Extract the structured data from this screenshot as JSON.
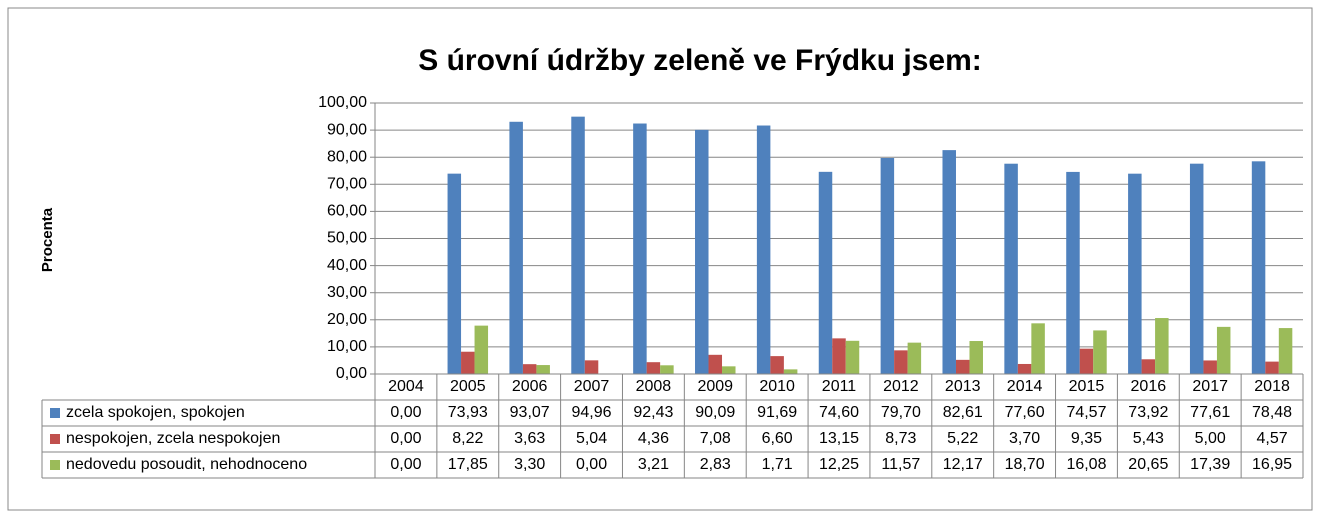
{
  "chart_data": {
    "type": "bar",
    "title": "S úrovní údržby zeleně ve Frýdku jsem:",
    "y_label": "Procenta",
    "categories": [
      "2004",
      "2005",
      "2006",
      "2007",
      "2008",
      "2009",
      "2010",
      "2011",
      "2012",
      "2013",
      "2014",
      "2015",
      "2016",
      "2017",
      "2018"
    ],
    "series": [
      {
        "name": "zcela spokojen, spokojen",
        "color": "#4f81bd",
        "values": [
          0,
          73.93,
          93.07,
          94.96,
          92.43,
          90.09,
          91.69,
          74.6,
          79.7,
          82.61,
          77.6,
          74.57,
          73.92,
          77.61,
          78.48
        ],
        "value_labels": [
          "0,00",
          "73,93",
          "93,07",
          "94,96",
          "92,43",
          "90,09",
          "91,69",
          "74,60",
          "79,70",
          "82,61",
          "77,60",
          "74,57",
          "73,92",
          "77,61",
          "78,48"
        ]
      },
      {
        "name": "nespokojen, zcela nespokojen",
        "color": "#c0504d",
        "values": [
          0,
          8.22,
          3.63,
          5.04,
          4.36,
          7.08,
          6.6,
          13.15,
          8.73,
          5.22,
          3.7,
          9.35,
          5.43,
          5.0,
          4.57
        ],
        "value_labels": [
          "0,00",
          "8,22",
          "3,63",
          "5,04",
          "4,36",
          "7,08",
          "6,60",
          "13,15",
          "8,73",
          "5,22",
          "3,70",
          "9,35",
          "5,43",
          "5,00",
          "4,57"
        ]
      },
      {
        "name": "nedovedu posoudit, nehodnoceno",
        "color": "#9bbb59",
        "values": [
          0,
          17.85,
          3.3,
          0,
          3.21,
          2.83,
          1.71,
          12.25,
          11.57,
          12.17,
          18.7,
          16.08,
          20.65,
          17.39,
          16.95
        ],
        "value_labels": [
          "0,00",
          "17,85",
          "3,30",
          "0,00",
          "3,21",
          "2,83",
          "1,71",
          "12,25",
          "11,57",
          "12,17",
          "18,70",
          "16,08",
          "20,65",
          "17,39",
          "16,95"
        ]
      }
    ],
    "ylim": [
      0,
      100
    ],
    "yticks": [
      {
        "value": 0,
        "label": "0,00"
      },
      {
        "value": 10,
        "label": "10,00"
      },
      {
        "value": 20,
        "label": "20,00"
      },
      {
        "value": 30,
        "label": "30,00"
      },
      {
        "value": 40,
        "label": "40,00"
      },
      {
        "value": 50,
        "label": "50,00"
      },
      {
        "value": 60,
        "label": "60,00"
      },
      {
        "value": 70,
        "label": "70,00"
      },
      {
        "value": 80,
        "label": "80,00"
      },
      {
        "value": 90,
        "label": "90,00"
      },
      {
        "value": 100,
        "label": "100,00"
      }
    ],
    "grid": true
  }
}
